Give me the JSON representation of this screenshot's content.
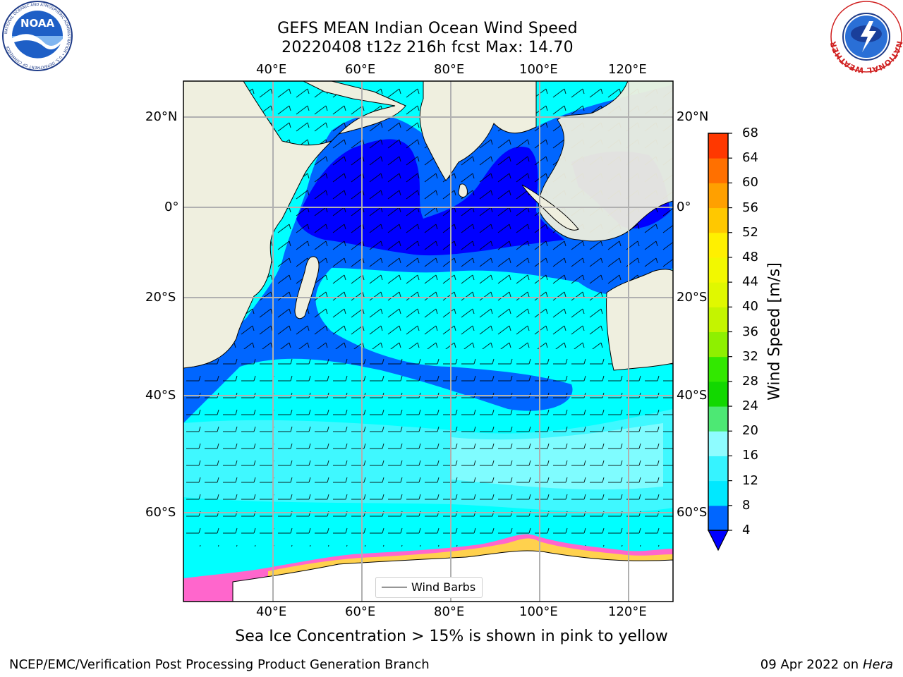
{
  "title": {
    "line1": "GEFS MEAN Indian Ocean Wind Speed",
    "line2": "20220408 t12z 216h fcst   Max: 14.70"
  },
  "map": {
    "lon_ticks": [
      "40°E",
      "60°E",
      "80°E",
      "100°E",
      "120°E"
    ],
    "lat_ticks": [
      "20°N",
      "0°",
      "20°S",
      "40°S",
      "60°S"
    ],
    "land_color": "#efefdf",
    "ice_color": "#ffffff",
    "gridline_color": "#b0b0b0"
  },
  "legend": {
    "barb_label": "Wind Barbs"
  },
  "colorbar": {
    "title": "Wind Speed [m/s]",
    "ticks": [
      "4",
      "8",
      "12",
      "16",
      "20",
      "24",
      "28",
      "32",
      "36",
      "40",
      "44",
      "48",
      "52",
      "56",
      "60",
      "64",
      "68"
    ],
    "colors": [
      "#0066ff",
      "#00e8ff",
      "#36f3ff",
      "#8efcff",
      "#4de874",
      "#12d800",
      "#32e800",
      "#8ef000",
      "#c4f400",
      "#e0f800",
      "#f2f800",
      "#fff000",
      "#ffc800",
      "#ffa000",
      "#ff7000",
      "#ff3800"
    ],
    "under_color": "#0000ff"
  },
  "sea_ice_note": "Sea Ice Concentration > 15% is shown in pink to yellow",
  "footer": {
    "credit": "NCEP/EMC/Verification Post Processing Product Generation Branch",
    "date": "09 Apr 2022 on",
    "machine": "Hera"
  },
  "logos": {
    "left": "NOAA",
    "left_ring": "NATIONAL OCEANIC AND ATMOSPHERIC ADMINISTRATION • U.S. DEPARTMENT OF COMMERCE",
    "right_ring": "NATIONAL WEATHER SERVICE"
  }
}
